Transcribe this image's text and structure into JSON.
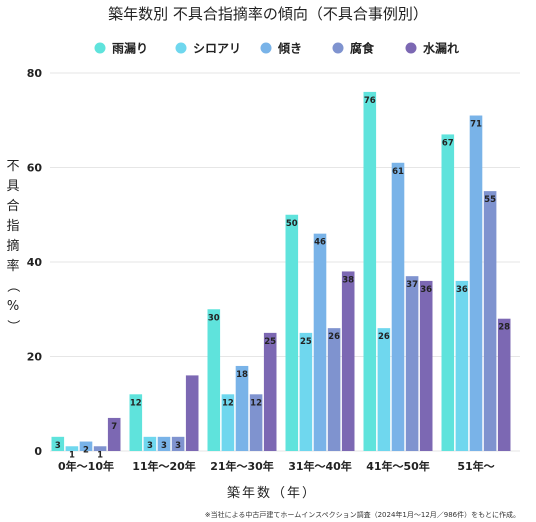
{
  "chart_data": {
    "type": "bar",
    "title": "築年数別 不具合指摘率の傾向（不具合事例別）",
    "xlabel": "築年数（年）",
    "ylabel": "不具合指摘率（%）",
    "ylim": [
      0,
      80
    ],
    "yticks": [
      0,
      20,
      40,
      60,
      80
    ],
    "grid": true,
    "legend_position": "top",
    "categories": [
      "0年～10年",
      "11年～20年",
      "21年～30年",
      "31年～40年",
      "41年～50年",
      "51年～"
    ],
    "series": [
      {
        "name": "雨漏り",
        "color": "#5fe3dc",
        "values": [
          3,
          12,
          30,
          50,
          76,
          67
        ],
        "labels": [
          "3",
          "12",
          "30",
          "50",
          "76",
          "67"
        ]
      },
      {
        "name": "シロアリ",
        "color": "#6fd7ee",
        "values": [
          1,
          3,
          12,
          25,
          26,
          36
        ],
        "labels": [
          "1",
          "3",
          "12",
          "25",
          "26",
          "36"
        ]
      },
      {
        "name": "傾き",
        "color": "#79b3e8",
        "values": [
          2,
          3,
          18,
          46,
          61,
          71
        ],
        "labels": [
          "2",
          "3",
          "18",
          "46",
          "61",
          "71"
        ]
      },
      {
        "name": "腐食",
        "color": "#7f93cf",
        "values": [
          1,
          3,
          12,
          26,
          37,
          55
        ],
        "labels": [
          "1",
          "3",
          "12",
          "26",
          "37",
          "55"
        ]
      },
      {
        "name": "水漏れ",
        "color": "#7c68b3",
        "values": [
          7,
          16,
          25,
          38,
          36,
          28
        ],
        "labels": [
          "7",
          "",
          "25",
          "38",
          "36",
          "28"
        ]
      }
    ],
    "footnote": "※当社による中古戸建てホームインスペクション調査（2024年1月～12月／986件）をもとに作成。"
  }
}
